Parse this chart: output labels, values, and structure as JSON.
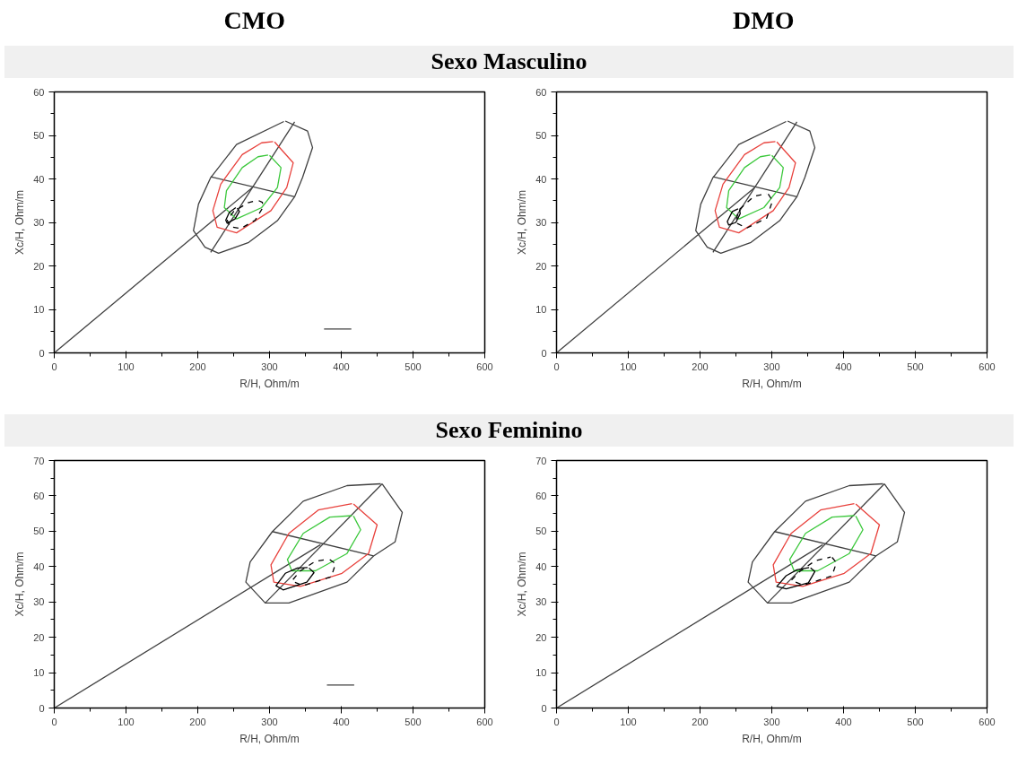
{
  "chart_data": [
    {
      "type": "line",
      "title": "CMO",
      "subtitle": "Sexo Masculino",
      "xlabel": "R/H, Ohm/m",
      "ylabel": "Xc/H, Ohm/m",
      "xlim": [
        0,
        600
      ],
      "ylim": [
        0,
        60
      ],
      "xticks": [
        0,
        100,
        200,
        300,
        400,
        500,
        600
      ],
      "yticks": [
        0,
        10,
        20,
        30,
        40,
        50,
        60
      ],
      "grid": false,
      "marker": "none",
      "series": [
        {
          "color": "#404040",
          "x": [
            322,
            353,
            360,
            346,
            335,
            311,
            271,
            229,
            210,
            194,
            201,
            218,
            254,
            320
          ],
          "values": [
            53.3,
            51,
            47.2,
            40.3,
            35.9,
            30.4,
            25.4,
            22.9,
            24.3,
            28.1,
            34.2,
            40.3,
            47.9,
            53.2
          ]
        },
        {
          "color": "#404040",
          "x": [
            218,
            335
          ],
          "values": [
            23.1,
            53.1
          ]
        },
        {
          "color": "#404040",
          "x": [
            218,
            335
          ],
          "values": [
            40.5,
            35.9
          ]
        },
        {
          "color": "#404040",
          "x": [
            0,
            276
          ],
          "values": [
            0,
            38
          ]
        },
        {
          "color": "#e8413c",
          "x": [
            307,
            333,
            324,
            302,
            254,
            227,
            221,
            232,
            262,
            289,
            305
          ],
          "values": [
            48.5,
            43.7,
            38,
            32.7,
            27.6,
            28.9,
            32.7,
            38.8,
            45.6,
            48.3,
            48.6
          ]
        },
        {
          "color": "#3cc83c",
          "x": [
            300,
            316,
            311,
            289,
            254,
            237,
            240,
            262,
            284,
            298
          ],
          "values": [
            45.4,
            42.6,
            38,
            33.4,
            30.8,
            33.4,
            37.3,
            42.6,
            45.1,
            45.5
          ]
        },
        {
          "color": "#000000",
          "x": [
            255,
            258,
            252,
            241,
            239,
            244,
            253
          ],
          "values": [
            33.3,
            32.5,
            30.8,
            29.8,
            30.5,
            32.3,
            33.4
          ]
        },
        {
          "color": "#000000",
          "line_style": "dashed",
          "x": [
            285,
            290,
            291,
            280,
            260,
            245,
            241,
            250,
            270,
            283
          ],
          "values": [
            35,
            34.6,
            33.5,
            30.5,
            28.6,
            29,
            30.5,
            32.5,
            34.5,
            35.1
          ]
        },
        {
          "color": "#404040",
          "x": [
            376,
            414
          ],
          "values": [
            5.5,
            5.5
          ]
        }
      ]
    },
    {
      "type": "line",
      "title": "DMO",
      "xlabel": "R/H, Ohm/m",
      "ylabel": "Xc/H, Ohm/m",
      "xlim": [
        0,
        600
      ],
      "ylim": [
        0,
        60
      ],
      "xticks": [
        0,
        100,
        200,
        300,
        400,
        500,
        600
      ],
      "yticks": [
        0,
        10,
        20,
        30,
        40,
        50,
        60
      ],
      "grid": false,
      "marker": "none",
      "series": [
        {
          "color": "#404040",
          "x": [
            322,
            353,
            360,
            346,
            335,
            311,
            271,
            229,
            210,
            194,
            201,
            218,
            254,
            320
          ],
          "values": [
            53.3,
            51,
            47.2,
            40.3,
            35.9,
            30.4,
            25.4,
            22.9,
            24.3,
            28.1,
            34.2,
            40.3,
            47.9,
            53.2
          ]
        },
        {
          "color": "#404040",
          "x": [
            218,
            335
          ],
          "values": [
            23.1,
            53.1
          ]
        },
        {
          "color": "#404040",
          "x": [
            218,
            335
          ],
          "values": [
            40.5,
            35.9
          ]
        },
        {
          "color": "#404040",
          "x": [
            0,
            276
          ],
          "values": [
            0,
            38
          ]
        },
        {
          "color": "#e8413c",
          "x": [
            307,
            333,
            324,
            302,
            254,
            227,
            221,
            232,
            262,
            289,
            305
          ],
          "values": [
            48.5,
            43.7,
            38,
            32.7,
            27.6,
            28.9,
            32.7,
            38.8,
            45.6,
            48.3,
            48.6
          ]
        },
        {
          "color": "#3cc83c",
          "x": [
            300,
            316,
            311,
            289,
            254,
            237,
            240,
            262,
            284,
            298
          ],
          "values": [
            45.4,
            42.6,
            38,
            33.4,
            30.8,
            33.4,
            37.3,
            42.6,
            45.1,
            45.5
          ]
        },
        {
          "color": "#000000",
          "x": [
            255,
            256,
            250,
            240,
            238,
            245,
            253
          ],
          "values": [
            33,
            32,
            30,
            29.4,
            30.2,
            32.5,
            33.1
          ]
        },
        {
          "color": "#000000",
          "line_style": "dashed",
          "x": [
            295,
            301,
            293,
            265,
            249,
            255,
            275,
            293
          ],
          "values": [
            36.5,
            35,
            31,
            28.7,
            30,
            33,
            36,
            36.6
          ]
        }
      ]
    },
    {
      "type": "line",
      "subtitle": "Sexo Feminino",
      "xlabel": "R/H, Ohm/m",
      "ylabel": "Xc/H, Ohm/m",
      "xlim": [
        0,
        600
      ],
      "ylim": [
        0,
        70
      ],
      "xticks": [
        0,
        100,
        200,
        300,
        400,
        500,
        600
      ],
      "yticks": [
        0,
        10,
        20,
        30,
        40,
        50,
        60,
        70
      ],
      "grid": false,
      "marker": "none",
      "series": [
        {
          "color": "#404040",
          "x": [
            457,
            485,
            475,
            445,
            408,
            327,
            294,
            267,
            273,
            304,
            347,
            408,
            455
          ],
          "values": [
            63.4,
            55.3,
            47,
            43,
            35.6,
            29.7,
            29.7,
            35.6,
            41.3,
            49.9,
            58.5,
            62.9,
            63.4
          ]
        },
        {
          "color": "#404040",
          "x": [
            294,
            457
          ],
          "values": [
            29.7,
            63.4
          ]
        },
        {
          "color": "#404040",
          "x": [
            304,
            445
          ],
          "values": [
            49.9,
            43
          ]
        },
        {
          "color": "#404040",
          "x": [
            0,
            371
          ],
          "values": [
            0,
            46.2
          ]
        },
        {
          "color": "#e8413c",
          "x": [
            417,
            450,
            438,
            401,
            343,
            306,
            302,
            327,
            368,
            415
          ],
          "values": [
            57.7,
            51.8,
            43.7,
            38.1,
            34.4,
            35.6,
            40.5,
            49.4,
            56,
            57.8
          ]
        },
        {
          "color": "#3cc83c",
          "x": [
            417,
            427,
            408,
            364,
            331,
            325,
            347,
            384,
            415
          ],
          "values": [
            54.3,
            50.4,
            43.7,
            38.8,
            38.8,
            42,
            49.4,
            54,
            54.4
          ]
        },
        {
          "color": "#000000",
          "x": [
            355,
            362,
            352,
            319,
            309,
            322,
            339,
            353
          ],
          "values": [
            39.6,
            38.3,
            35.6,
            33.4,
            34.6,
            38.1,
            39.6,
            39.7
          ]
        },
        {
          "color": "#000000",
          "line_style": "dashed",
          "x": [
            384,
            392,
            386,
            347,
            331,
            343,
            364,
            382
          ],
          "values": [
            42,
            40.8,
            37.1,
            34.6,
            35.9,
            38.8,
            41.5,
            42.1
          ]
        },
        {
          "color": "#404040",
          "x": [
            380,
            418
          ],
          "values": [
            6.5,
            6.5
          ]
        }
      ]
    },
    {
      "type": "line",
      "xlabel": "R/H, Ohm/m",
      "ylabel": "Xc/H, Ohm/m",
      "xlim": [
        0,
        600
      ],
      "ylim": [
        0,
        70
      ],
      "xticks": [
        0,
        100,
        200,
        300,
        400,
        500,
        600
      ],
      "yticks": [
        0,
        10,
        20,
        30,
        40,
        50,
        60,
        70
      ],
      "grid": false,
      "marker": "none",
      "series": [
        {
          "color": "#404040",
          "x": [
            457,
            485,
            475,
            445,
            408,
            327,
            294,
            267,
            273,
            304,
            347,
            408,
            455
          ],
          "values": [
            63.4,
            55.3,
            47,
            43,
            35.6,
            29.7,
            29.7,
            35.6,
            41.3,
            49.9,
            58.5,
            62.9,
            63.4
          ]
        },
        {
          "color": "#404040",
          "x": [
            294,
            457
          ],
          "values": [
            29.7,
            63.4
          ]
        },
        {
          "color": "#404040",
          "x": [
            304,
            445
          ],
          "values": [
            49.9,
            43
          ]
        },
        {
          "color": "#404040",
          "x": [
            0,
            371
          ],
          "values": [
            0,
            46.2
          ]
        },
        {
          "color": "#e8413c",
          "x": [
            417,
            450,
            438,
            401,
            343,
            306,
            302,
            327,
            368,
            415
          ],
          "values": [
            57.7,
            51.8,
            43.7,
            38.1,
            34.4,
            35.6,
            40.5,
            49.4,
            56,
            57.8
          ]
        },
        {
          "color": "#3cc83c",
          "x": [
            417,
            427,
            408,
            364,
            331,
            325,
            347,
            384,
            415
          ],
          "values": [
            54.3,
            50.4,
            43.7,
            38.8,
            38.8,
            42,
            49.4,
            54,
            54.4
          ]
        },
        {
          "color": "#000000",
          "x": [
            354,
            360,
            351,
            320,
            307,
            320,
            335,
            352
          ],
          "values": [
            39.6,
            38.6,
            35.4,
            33.7,
            34.4,
            37.4,
            39.1,
            39.7
          ]
        },
        {
          "color": "#000000",
          "line_style": "dashed",
          "x": [
            384,
            390,
            384,
            344,
            327,
            339,
            360,
            382
          ],
          "values": [
            42.6,
            41.1,
            37.4,
            34.7,
            36.1,
            38.6,
            41.6,
            42.7
          ]
        }
      ]
    }
  ]
}
